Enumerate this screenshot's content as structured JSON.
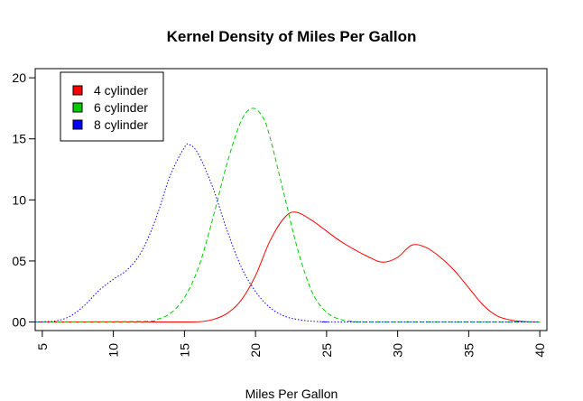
{
  "chart_data": {
    "type": "line",
    "title": "Kernel Density of Miles Per Gallon",
    "xlabel": "Miles Per Gallon",
    "ylabel": "",
    "xlim": [
      4.5,
      40.5
    ],
    "ylim": [
      0.0,
      0.2
    ],
    "x_ticks": [
      5,
      10,
      15,
      20,
      25,
      30,
      35,
      40
    ],
    "x_tick_labels": [
      "5",
      "10",
      "15",
      "20",
      "25",
      "30",
      "35",
      "40"
    ],
    "y_ticks": [
      0.0,
      0.05,
      0.1,
      0.15,
      0.2
    ],
    "y_tick_labels": [
      "00",
      "05",
      "10",
      "15",
      "20"
    ],
    "legend": {
      "position": "top-left",
      "entries": [
        {
          "label": "4 cylinder",
          "color": "#ff0000"
        },
        {
          "label": "6 cylinder",
          "color": "#00cc00"
        },
        {
          "label": "8 cylinder",
          "color": "#0000ff"
        }
      ]
    },
    "series": [
      {
        "name": "4 cylinder",
        "color": "#ff0000",
        "line_style": "solid",
        "x": [
          4.5,
          14,
          16,
          17,
          18,
          19,
          20,
          21,
          22,
          22.8,
          24,
          26,
          28,
          29,
          30,
          31,
          32,
          33,
          34,
          35,
          36,
          37,
          38,
          39,
          40
        ],
        "y": [
          0.0,
          0.0,
          0.0002,
          0.002,
          0.007,
          0.018,
          0.038,
          0.066,
          0.085,
          0.09,
          0.083,
          0.066,
          0.053,
          0.049,
          0.053,
          0.063,
          0.061,
          0.053,
          0.042,
          0.028,
          0.014,
          0.005,
          0.0015,
          0.0003,
          0.0
        ]
      },
      {
        "name": "6 cylinder",
        "color": "#00cc00",
        "line_style": "dashed",
        "x": [
          4.5,
          12,
          13,
          14,
          15,
          16,
          17,
          18,
          19,
          19.8,
          20.5,
          21,
          22,
          23,
          24,
          25,
          26,
          27,
          28,
          40
        ],
        "y": [
          0.0,
          0.0005,
          0.002,
          0.007,
          0.02,
          0.045,
          0.085,
          0.13,
          0.165,
          0.175,
          0.168,
          0.152,
          0.105,
          0.058,
          0.024,
          0.008,
          0.002,
          0.0004,
          0.0,
          0.0
        ]
      },
      {
        "name": "8 cylinder",
        "color": "#0000ff",
        "line_style": "dotted",
        "x": [
          4.5,
          5,
          6,
          7,
          8,
          9,
          10,
          11,
          12,
          13,
          14,
          15,
          15.4,
          16,
          17,
          18,
          19,
          20,
          21,
          22,
          23,
          24,
          25,
          26,
          40
        ],
        "y": [
          0.0,
          0.0002,
          0.001,
          0.005,
          0.014,
          0.026,
          0.035,
          0.043,
          0.058,
          0.085,
          0.12,
          0.143,
          0.145,
          0.137,
          0.11,
          0.075,
          0.045,
          0.025,
          0.012,
          0.005,
          0.002,
          0.0006,
          0.0002,
          0.0,
          0.0
        ]
      }
    ]
  }
}
